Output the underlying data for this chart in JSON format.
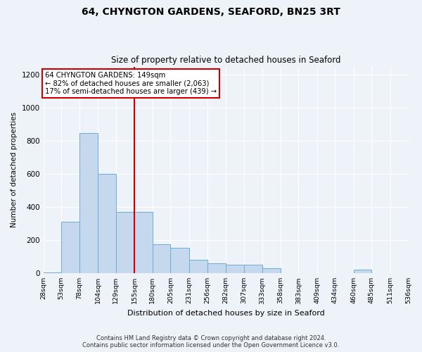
{
  "title": "64, CHYNGTON GARDENS, SEAFORD, BN25 3RT",
  "subtitle": "Size of property relative to detached houses in Seaford",
  "xlabel": "Distribution of detached houses by size in Seaford",
  "ylabel": "Number of detached properties",
  "bin_edges": [
    28,
    53,
    78,
    104,
    129,
    155,
    180,
    205,
    231,
    256,
    282,
    307,
    333,
    358,
    383,
    409,
    434,
    460,
    485,
    511,
    536
  ],
  "bar_heights": [
    5,
    310,
    850,
    600,
    370,
    370,
    175,
    155,
    80,
    60,
    50,
    50,
    30,
    0,
    0,
    0,
    0,
    20,
    0,
    0
  ],
  "bar_color": "#c5d8ed",
  "bar_edge_color": "#6aaed6",
  "vline_x": 155,
  "vline_color": "#cc0000",
  "annotation_text": "64 CHYNGTON GARDENS: 149sqm\n← 82% of detached houses are smaller (2,063)\n17% of semi-detached houses are larger (439) →",
  "annotation_box_color": "#ffffff",
  "annotation_box_edge_color": "#cc0000",
  "ylim": [
    0,
    1250
  ],
  "yticks": [
    0,
    200,
    400,
    600,
    800,
    1000,
    1200
  ],
  "x_tick_labels": [
    "28sqm",
    "53sqm",
    "78sqm",
    "104sqm",
    "129sqm",
    "155sqm",
    "180sqm",
    "205sqm",
    "231sqm",
    "256sqm",
    "282sqm",
    "307sqm",
    "333sqm",
    "358sqm",
    "383sqm",
    "409sqm",
    "434sqm",
    "460sqm",
    "485sqm",
    "511sqm",
    "536sqm"
  ],
  "footer_line1": "Contains HM Land Registry data © Crown copyright and database right 2024.",
  "footer_line2": "Contains public sector information licensed under the Open Government Licence v3.0.",
  "background_color": "#eef2f9",
  "plot_bg_color": "#eef2f9",
  "grid_color": "#ffffff",
  "title_fontsize": 10,
  "subtitle_fontsize": 8.5
}
